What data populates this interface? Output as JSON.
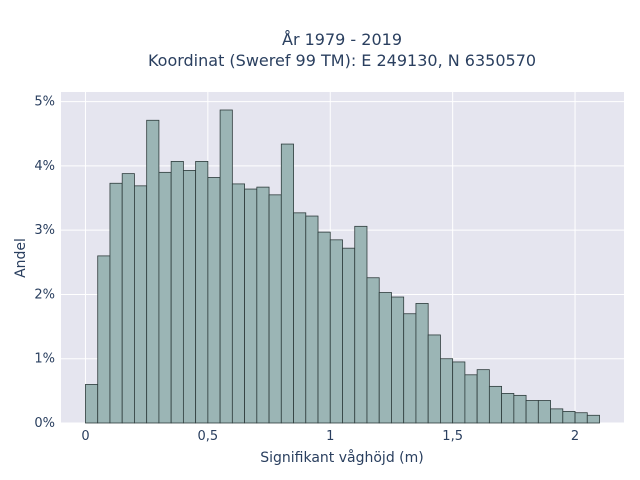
{
  "chart_data": {
    "type": "bar",
    "title_line1": "År 1979 - 2019",
    "title_line2": "Koordinat (Sweref 99 TM): E 249130, N 6350570",
    "xlabel": "Signifikant våghöjd (m)",
    "ylabel": "Andel",
    "bin_width": 0.05,
    "bin_starts": [
      0.0,
      0.05,
      0.1,
      0.15,
      0.2,
      0.25,
      0.3,
      0.35,
      0.4,
      0.45,
      0.5,
      0.55,
      0.6,
      0.65,
      0.7,
      0.75,
      0.8,
      0.85,
      0.9,
      0.95,
      1.0,
      1.05,
      1.1,
      1.15,
      1.2,
      1.25,
      1.3,
      1.35,
      1.4,
      1.45,
      1.5,
      1.55,
      1.6,
      1.65,
      1.7,
      1.75,
      1.8,
      1.85,
      1.9,
      1.95,
      2.0,
      2.05
    ],
    "values": [
      0.6,
      2.6,
      3.73,
      3.88,
      3.69,
      4.71,
      3.9,
      4.07,
      3.93,
      4.07,
      3.82,
      4.87,
      3.72,
      3.64,
      3.67,
      3.55,
      4.34,
      3.27,
      3.22,
      2.97,
      2.85,
      2.72,
      3.06,
      2.26,
      2.03,
      1.96,
      1.7,
      1.86,
      1.37,
      1.0,
      0.95,
      0.75,
      0.83,
      0.57,
      0.46,
      0.43,
      0.35,
      0.35,
      0.22,
      0.18,
      0.16,
      0.12
    ],
    "xlim": [
      -0.1,
      2.2
    ],
    "ylim": [
      0,
      5.15
    ],
    "x_ticks": [
      0,
      0.5,
      1,
      1.5,
      2
    ],
    "x_tick_labels": [
      "0",
      "0,5",
      "1",
      "1,5",
      "2"
    ],
    "y_ticks": [
      0,
      1,
      2,
      3,
      4,
      5
    ],
    "y_tick_labels": [
      "0%",
      "1%",
      "2%",
      "3%",
      "4%",
      "5%"
    ],
    "grid": true,
    "bar_color": "#9bb5b5",
    "bar_edge_color": "#2e3c3c",
    "plot_bg": "#e5e5ef",
    "grid_color": "#ffffff"
  }
}
